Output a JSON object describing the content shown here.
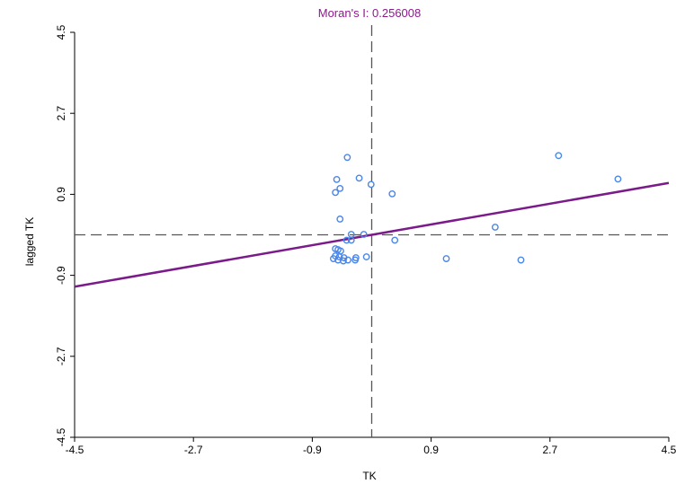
{
  "chart_data": {
    "type": "scatter",
    "title": "Moran's I: 0.256008",
    "xlabel": "TK",
    "ylabel": "lagged TK",
    "xlim": [
      -4.5,
      4.5
    ],
    "ylim": [
      -4.5,
      4.5
    ],
    "x_ticks": [
      "-4.5",
      "-2.7",
      "-0.9",
      "0.9",
      "2.7",
      "4.5"
    ],
    "y_ticks": [
      "-4.5",
      "-2.7",
      "-0.9",
      "0.9",
      "2.7",
      "4.5"
    ],
    "x_tick_values": [
      -4.5,
      -2.7,
      -0.9,
      0.9,
      2.7,
      4.5
    ],
    "y_tick_values": [
      -4.5,
      -2.7,
      -0.9,
      0.9,
      2.7,
      4.5
    ],
    "mean_lines": {
      "x": 0.0,
      "y": 0.0
    },
    "regression_line": {
      "slope": 0.256008,
      "intercept": 0.0
    },
    "grid": false,
    "colors": {
      "points": "#4A86E8",
      "regression": "#7B1A8A",
      "title": "#8B1A8B",
      "mean_lines": "#555555",
      "axis": "#000000"
    },
    "points": [
      {
        "x": 2.83,
        "y": 1.76
      },
      {
        "x": 3.73,
        "y": 1.24
      },
      {
        "x": -0.37,
        "y": 1.72
      },
      {
        "x": -0.53,
        "y": 1.23
      },
      {
        "x": -0.19,
        "y": 1.26
      },
      {
        "x": -0.01,
        "y": 1.12
      },
      {
        "x": -0.48,
        "y": 1.03
      },
      {
        "x": -0.55,
        "y": 0.94
      },
      {
        "x": 0.31,
        "y": 0.91
      },
      {
        "x": -0.48,
        "y": 0.35
      },
      {
        "x": 1.87,
        "y": 0.17
      },
      {
        "x": -0.31,
        "y": 0.01
      },
      {
        "x": -0.12,
        "y": 0.01
      },
      {
        "x": -0.38,
        "y": -0.12
      },
      {
        "x": -0.31,
        "y": -0.12
      },
      {
        "x": 0.35,
        "y": -0.12
      },
      {
        "x": -0.55,
        "y": -0.31
      },
      {
        "x": -0.51,
        "y": -0.33
      },
      {
        "x": -0.47,
        "y": -0.36
      },
      {
        "x": -0.55,
        "y": -0.47
      },
      {
        "x": -0.49,
        "y": -0.49
      },
      {
        "x": -0.42,
        "y": -0.51
      },
      {
        "x": -0.24,
        "y": -0.51
      },
      {
        "x": -0.08,
        "y": -0.49
      },
      {
        "x": -0.58,
        "y": -0.53
      },
      {
        "x": -0.51,
        "y": -0.56
      },
      {
        "x": -0.43,
        "y": -0.58
      },
      {
        "x": -0.36,
        "y": -0.56
      },
      {
        "x": -0.25,
        "y": -0.56
      },
      {
        "x": 1.13,
        "y": -0.53
      },
      {
        "x": 2.26,
        "y": -0.56
      }
    ]
  }
}
